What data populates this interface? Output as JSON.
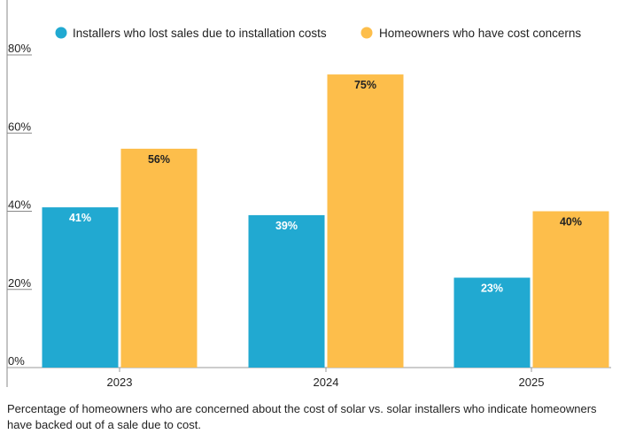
{
  "chart_data": {
    "type": "bar",
    "categories": [
      "2023",
      "2024",
      "2025"
    ],
    "series": [
      {
        "name": "Installers who lost sales due to installation costs",
        "values": [
          41,
          39,
          23
        ],
        "color": "#21a9d1",
        "label_color": "#ffffff"
      },
      {
        "name": "Homeowners who have cost concerns",
        "values": [
          56,
          75,
          40
        ],
        "color": "#fdbe4b",
        "label_color": "#222222"
      }
    ],
    "data_labels": [
      [
        "41%",
        "39%",
        "23%"
      ],
      [
        "56%",
        "75%",
        "40%"
      ]
    ],
    "yticks": [
      0,
      20,
      40,
      60,
      80
    ],
    "ytick_labels": [
      "0%",
      "20%",
      "40%",
      "60%",
      "80%"
    ],
    "ylim": [
      0,
      80
    ],
    "grid": false,
    "legend": "top"
  },
  "caption": "Percentage of homeowners who are concerned about the cost of solar vs. solar installers who indicate homeowners have backed out of a sale due to cost."
}
